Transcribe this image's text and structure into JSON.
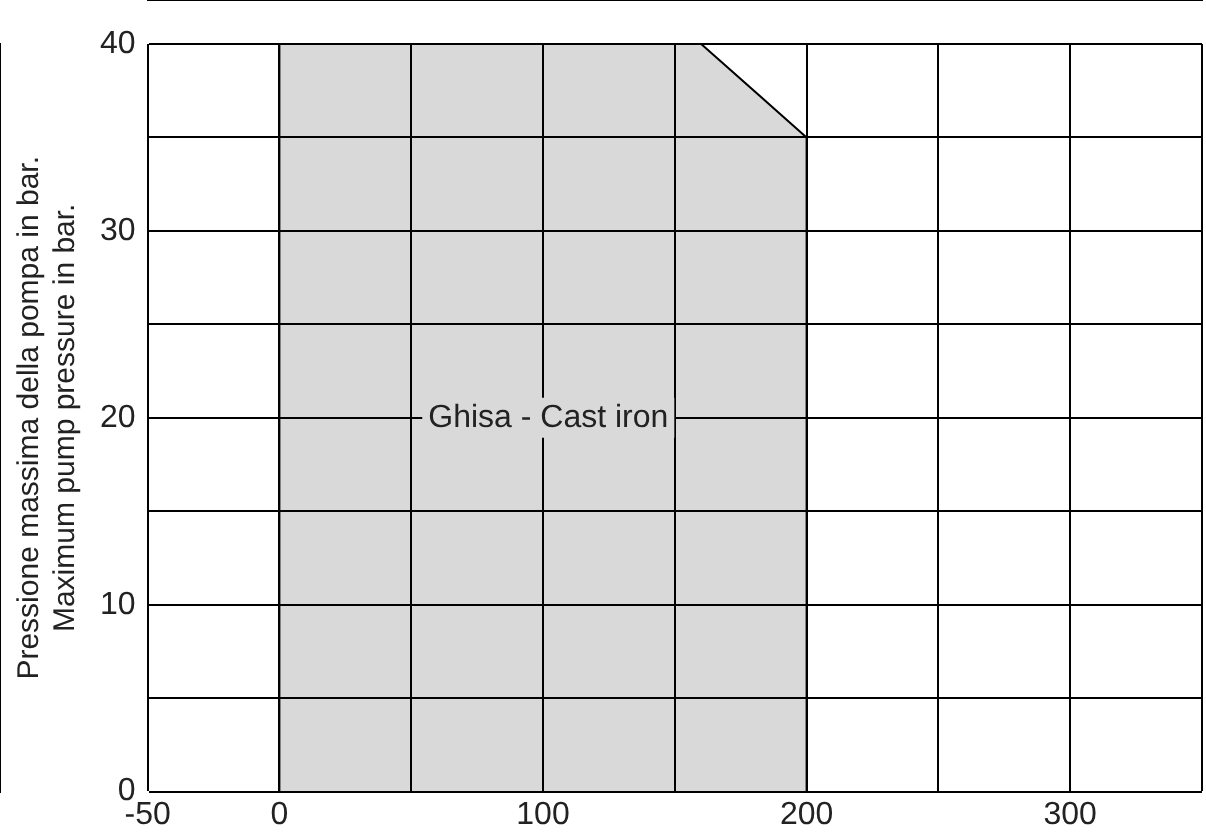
{
  "chart_data": {
    "type": "area",
    "ylabel": "Pressione massima della pompa in bar.\nMaximum pump pressure in bar.",
    "series": [
      {
        "color": "#d9d9d9",
        "x": [
          0,
          0,
          160,
          200,
          200
        ],
        "values": [
          0,
          40,
          40,
          35,
          0
        ]
      }
    ],
    "xlim": [
      -50,
      350
    ],
    "xticks": [
      -50,
      0,
      {
        "value": 50,
        "label": null
      },
      100,
      {
        "value": 150,
        "label": null
      },
      200,
      {
        "value": 250,
        "label": null
      },
      300,
      {
        "value": 350,
        "label": null
      }
    ],
    "ylim": [
      0,
      40
    ],
    "yticks": [
      0,
      {
        "value": 5,
        "label": null
      },
      10,
      {
        "value": 15,
        "label": null
      },
      20,
      {
        "value": 25,
        "label": null
      },
      30,
      {
        "value": 35,
        "label": null
      },
      40
    ],
    "annotations": [
      "Ghisa - Cast iron"
    ],
    "grid": true,
    "legend": false
  }
}
